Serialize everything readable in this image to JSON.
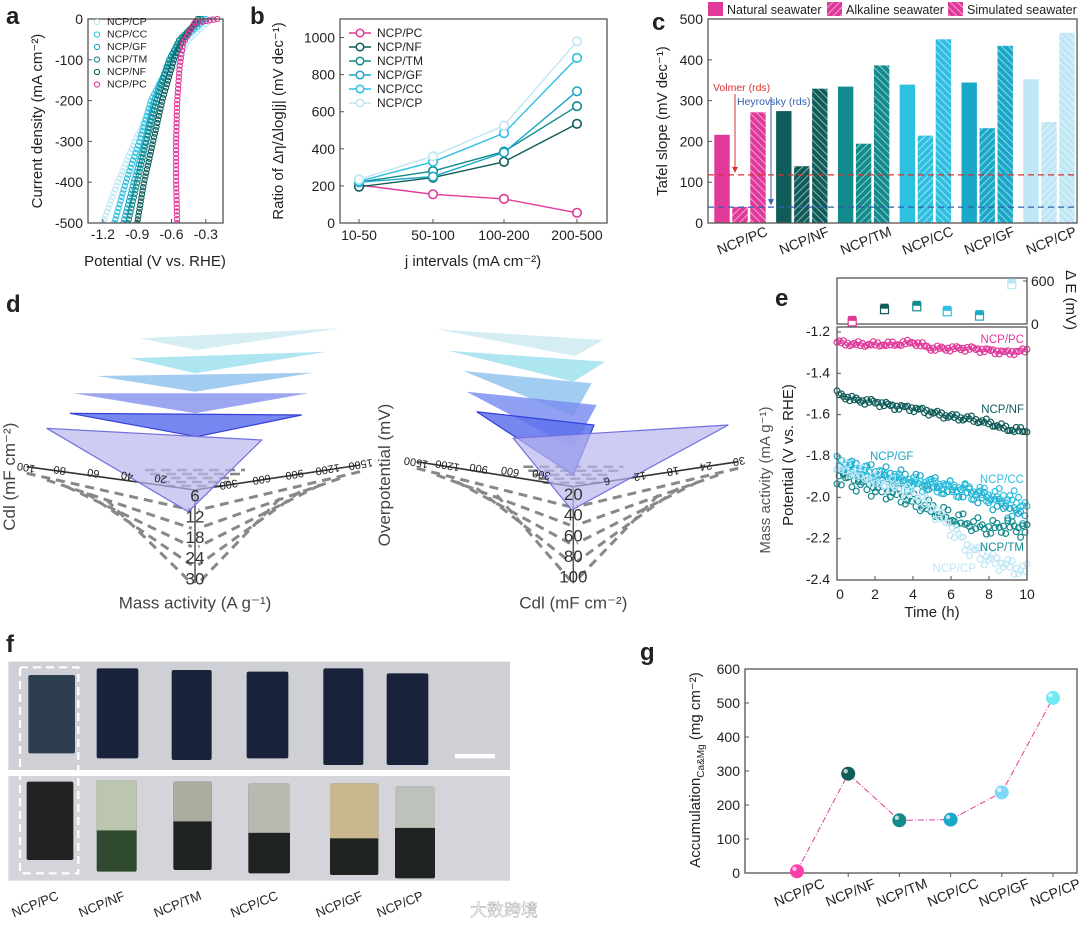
{
  "panel_labels": {
    "a": "a",
    "b": "b",
    "c": "c",
    "d": "d",
    "e": "e",
    "f": "f",
    "g": "g"
  },
  "colors": {
    "NCP/PC": "#e0399a",
    "NCP/NF": "#0f5c5a",
    "NCP/TM": "#138a8c",
    "NCP/GF": "#1aa8c8",
    "NCP/CC": "#2ec0e0",
    "NCP/CP": "#bfe6f5",
    "volmer": "#d93030",
    "heyrovsky": "#2f5fb0"
  },
  "chart_data": [
    {
      "id": "a",
      "type": "scatter",
      "xlabel": "Potential (V vs. RHE)",
      "ylabel": "Current density (mA cm⁻²)",
      "xlim": [
        -1.33,
        -0.15
      ],
      "ylim": [
        -500,
        0
      ],
      "xticks": [
        -1.2,
        -0.9,
        -0.6,
        -0.3
      ],
      "xtick_labels": [
        "-1.2",
        "-0.9",
        "-0.6",
        "-0.3"
      ],
      "yticks": [
        0,
        -100,
        -200,
        -300,
        -400,
        -500
      ],
      "ytick_labels": [
        "0",
        "-100",
        "-200",
        "-300",
        "-400",
        "-500"
      ],
      "legend": "top-left",
      "series": [
        {
          "name": "NCP/CP",
          "points": [
            [
              -0.25,
              0
            ],
            [
              -0.45,
              -50
            ],
            [
              -0.55,
              -100
            ],
            [
              -0.75,
              -200
            ],
            [
              -0.92,
              -300
            ],
            [
              -1.07,
              -400
            ],
            [
              -1.2,
              -500
            ]
          ]
        },
        {
          "name": "NCP/CC",
          "points": [
            [
              -0.3,
              0
            ],
            [
              -0.5,
              -50
            ],
            [
              -0.6,
              -100
            ],
            [
              -0.78,
              -200
            ],
            [
              -0.88,
              -300
            ],
            [
              -1.0,
              -400
            ],
            [
              -1.1,
              -500
            ]
          ]
        },
        {
          "name": "NCP/GF",
          "points": [
            [
              -0.33,
              0
            ],
            [
              -0.52,
              -50
            ],
            [
              -0.62,
              -100
            ],
            [
              -0.75,
              -200
            ],
            [
              -0.83,
              -300
            ],
            [
              -0.93,
              -400
            ],
            [
              -1.02,
              -500
            ]
          ]
        },
        {
          "name": "NCP/TM",
          "points": [
            [
              -0.35,
              0
            ],
            [
              -0.53,
              -50
            ],
            [
              -0.62,
              -100
            ],
            [
              -0.73,
              -200
            ],
            [
              -0.82,
              -300
            ],
            [
              -0.9,
              -400
            ],
            [
              -0.98,
              -500
            ]
          ]
        },
        {
          "name": "NCP/NF",
          "points": [
            [
              -0.37,
              0
            ],
            [
              -0.5,
              -50
            ],
            [
              -0.58,
              -100
            ],
            [
              -0.68,
              -200
            ],
            [
              -0.76,
              -300
            ],
            [
              -0.84,
              -400
            ],
            [
              -0.9,
              -500
            ]
          ]
        },
        {
          "name": "NCP/PC",
          "points": [
            [
              -0.2,
              0
            ],
            [
              -0.4,
              -10
            ],
            [
              -0.5,
              -60
            ],
            [
              -0.53,
              -120
            ],
            [
              -0.55,
              -200
            ],
            [
              -0.56,
              -300
            ],
            [
              -0.56,
              -400
            ],
            [
              -0.55,
              -500
            ]
          ]
        }
      ]
    },
    {
      "id": "b",
      "type": "line",
      "xlabel": "j intervals (mA cm⁻²)",
      "ylabel": "Ratio of Δη/Δlog|j| (mV dec⁻¹)",
      "categories": [
        "10-50",
        "50-100",
        "100-200",
        "200-500"
      ],
      "ylim": [
        0,
        1100
      ],
      "yticks": [
        0,
        200,
        400,
        600,
        800,
        1000
      ],
      "ytick_labels": [
        "0",
        "200",
        "400",
        "600",
        "800",
        "1000"
      ],
      "legend": "top-left",
      "series": [
        {
          "name": "NCP/PC",
          "values": [
            205,
            155,
            130,
            55
          ]
        },
        {
          "name": "NCP/NF",
          "values": [
            195,
            245,
            330,
            535
          ]
        },
        {
          "name": "NCP/TM",
          "values": [
            220,
            280,
            385,
            630
          ]
        },
        {
          "name": "NCP/GF",
          "values": [
            220,
            250,
            380,
            710
          ]
        },
        {
          "name": "NCP/CC",
          "values": [
            225,
            330,
            485,
            890
          ]
        },
        {
          "name": "NCP/CP",
          "values": [
            235,
            360,
            525,
            980
          ]
        }
      ]
    },
    {
      "id": "c",
      "type": "bar",
      "ylabel": "Tafel slope (mV dec⁻¹)",
      "categories": [
        "NCP/PC",
        "NCP/NF",
        "NCP/TM",
        "NCP/CC",
        "NCP/GF",
        "NCP/CP"
      ],
      "ylim": [
        0,
        500
      ],
      "yticks": [
        0,
        100,
        200,
        300,
        400,
        500
      ],
      "ytick_labels": [
        "0",
        "100",
        "200",
        "300",
        "400",
        "500"
      ],
      "legend": "top",
      "series": [
        {
          "name": "Natural seawater",
          "values": [
            217,
            275,
            335,
            340,
            345,
            353
          ]
        },
        {
          "name": "Alkaline seawater",
          "values": [
            40,
            140,
            195,
            215,
            233,
            248
          ]
        },
        {
          "name": "Simulated seawater",
          "values": [
            272,
            330,
            387,
            451,
            435,
            467
          ]
        }
      ],
      "reference_lines": [
        {
          "label": "Volmer (rds)",
          "value": 118
        },
        {
          "label": "Heyrovsky (rds)",
          "value": 39
        }
      ]
    },
    {
      "id": "e",
      "type": "scatter",
      "xlabel": "Time (h)",
      "ylabel": "Potential (V vs. RHE)",
      "ylabel_overlap": "Mass activity (mA g⁻¹)",
      "xlim": [
        0,
        10
      ],
      "ylim": [
        -2.4,
        -1.2
      ],
      "xticks": [
        0,
        2,
        4,
        6,
        8,
        10
      ],
      "xtick_labels": [
        "0",
        "2",
        "4",
        "6",
        "8",
        "10"
      ],
      "yticks": [
        -1.2,
        -1.4,
        -1.6,
        -1.8,
        -2.0,
        -2.2,
        -2.4
      ],
      "ytick_labels": [
        "-1.2",
        "-1.4",
        "-1.6",
        "-1.8",
        "-2.0",
        "-2.2",
        "-2.4"
      ],
      "times": [
        0,
        1,
        2,
        3,
        4,
        5,
        6,
        7,
        8,
        9,
        10
      ],
      "series": [
        {
          "name": "NCP/PC",
          "values": [
            -1.25,
            -1.26,
            -1.26,
            -1.26,
            -1.25,
            -1.28,
            -1.28,
            -1.28,
            -1.29,
            -1.3,
            -1.29
          ]
        },
        {
          "name": "NCP/NF",
          "values": [
            -1.5,
            -1.53,
            -1.54,
            -1.56,
            -1.57,
            -1.59,
            -1.61,
            -1.62,
            -1.64,
            -1.67,
            -1.68
          ]
        },
        {
          "name": "NCP/GF",
          "values": [
            -1.83,
            -1.86,
            -1.88,
            -1.9,
            -1.92,
            -1.94,
            -1.96,
            -1.98,
            -2.01,
            -2.06,
            -2.1
          ]
        },
        {
          "name": "NCP/CC",
          "values": [
            -1.85,
            -1.88,
            -1.9,
            -1.91,
            -1.93,
            -1.94,
            -1.95,
            -1.97,
            -1.99,
            -2.0,
            -2.03
          ]
        },
        {
          "name": "NCP/TM",
          "values": [
            -1.9,
            -1.93,
            -1.96,
            -1.98,
            -2.02,
            -2.06,
            -2.1,
            -2.13,
            -2.15,
            -2.14,
            -2.16
          ]
        },
        {
          "name": "NCP/CP",
          "values": [
            -1.85,
            -1.88,
            -1.92,
            -1.95,
            -1.99,
            -2.05,
            -2.15,
            -2.25,
            -2.3,
            -2.33,
            -2.36
          ]
        }
      ],
      "inset": {
        "ylabel": "Δ E (mV)",
        "ylim": [
          0,
          650
        ],
        "yticks": [
          0,
          600
        ],
        "ytick_labels": [
          "0",
          "600"
        ],
        "points": [
          {
            "name": "NCP/PC",
            "t": 0.8,
            "value": 30
          },
          {
            "name": "NCP/NF",
            "t": 2.5,
            "value": 200
          },
          {
            "name": "NCP/TM",
            "t": 4.2,
            "value": 240
          },
          {
            "name": "NCP/CC",
            "t": 5.8,
            "value": 170
          },
          {
            "name": "NCP/GF",
            "t": 7.5,
            "value": 110
          },
          {
            "name": "NCP/CP",
            "t": 9.2,
            "value": 550
          }
        ]
      }
    },
    {
      "id": "g",
      "type": "line",
      "ylabel_main": "Accumulation",
      "ylabel_sub": "Ca&Mg",
      "ylabel_unit": "(mg cm⁻²)",
      "categories": [
        "NCP/PC",
        "NCP/NF",
        "NCP/TM",
        "NCP/CC",
        "NCP/GF",
        "NCP/CP"
      ],
      "values": [
        5,
        292,
        155,
        157,
        237,
        515
      ],
      "ylim": [
        0,
        600
      ],
      "yticks": [
        0,
        100,
        200,
        300,
        400,
        500,
        600
      ],
      "ytick_labels": [
        "0",
        "100",
        "200",
        "300",
        "400",
        "500",
        "600"
      ]
    }
  ],
  "panel_d": {
    "left": {
      "xlabel": "Mass activity (A g⁻¹)",
      "ylabel": "Cdl (mF cm⁻²)",
      "down_ticks": [
        "6",
        "12",
        "18",
        "24",
        "30"
      ],
      "left_ticks": [
        "100",
        "80",
        "60",
        "40",
        "20"
      ],
      "right_ticks": [
        "300",
        "600",
        "900",
        "1200",
        "1500"
      ]
    },
    "right": {
      "xlabel": "Cdl (mF cm⁻²)",
      "ylabel": "Overpotential (mV)",
      "down_ticks": [
        "20",
        "40",
        "60",
        "80",
        "100"
      ],
      "left_ticks": [
        "1500",
        "1200",
        "900",
        "600",
        "300"
      ],
      "right_ticks": [
        "6",
        "12",
        "18",
        "24",
        "30"
      ]
    }
  },
  "panel_f": {
    "samples": [
      "NCP/PC",
      "NCP/NF",
      "NCP/TM",
      "NCP/CC",
      "NCP/GF",
      "NCP/CP"
    ],
    "watermark": "大数跨境"
  }
}
